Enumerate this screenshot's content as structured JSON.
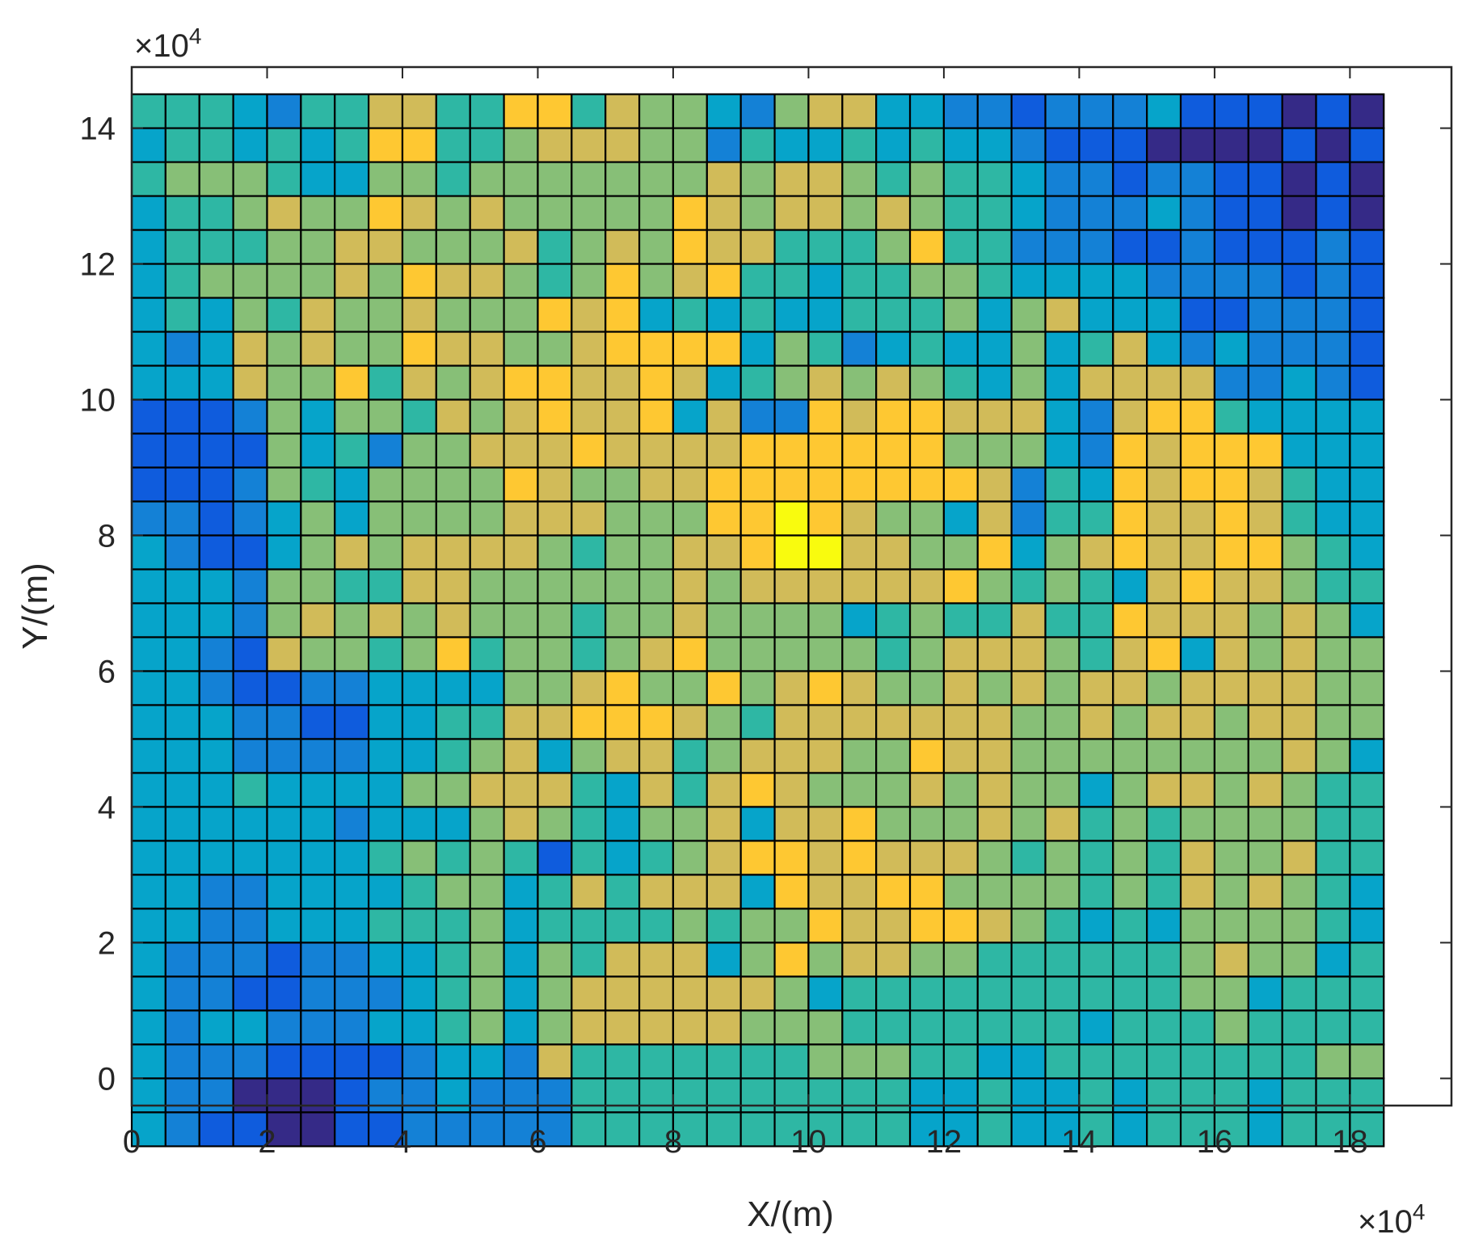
{
  "chart_data": {
    "type": "heatmap",
    "title": "",
    "xlabel": "X/(m)",
    "ylabel": "Y/(m)",
    "x_exponent": "×10",
    "x_exponent_power": "4",
    "y_exponent": "×10",
    "y_exponent_power": "4",
    "xlim": [
      0,
      19.5
    ],
    "ylim": [
      -0.4,
      14.9
    ],
    "x_ticks": [
      "0",
      "2",
      "4",
      "6",
      "8",
      "10",
      "12",
      "14",
      "16",
      "18"
    ],
    "x_tick_values": [
      0,
      2,
      4,
      6,
      8,
      10,
      12,
      14,
      16,
      18
    ],
    "y_ticks": [
      "0",
      "2",
      "4",
      "6",
      "8",
      "10",
      "12",
      "14"
    ],
    "y_tick_values": [
      0,
      2,
      4,
      6,
      8,
      10,
      12,
      14
    ],
    "cell_size": 0.5,
    "x_start": 0,
    "y_top": 14.5,
    "grid": true,
    "colormap": "parula",
    "colormap_stops": [
      "#352a87",
      "#0f5cdd",
      "#1481d6",
      "#06a4ca",
      "#2eb7a4",
      "#87bf77",
      "#d1bb59",
      "#fec832",
      "#f9fb0e"
    ],
    "values_rows_top_to_bottom": [
      "4443244664477465532566332212223111010",
      "3443434774456665524334343321110000101",
      "4555433554555555565665454432212211010",
      "3445655765655555765665654432223211010",
      "3444556655564565766444574422211211121",
      "3455556576654575674434455433332222121",
      "3435465565557673434334445356333112221",
      "3236565576655677773542343353463232221",
      "3336557465677667634565654353666622321",
      "1112535546567667362276776663267743333",
      "1111534255666766667777775553276777333",
      "1112543555576556677777777624376776433",
      "2212353555566655577876553624476676433",
      "3211356566665455667886655735676677543",
      "3332554466555555656666667545436766544",
      "3332565656555455655553454464476665653",
      "3321655457455456755555456665467365655",
      "3321122333355675575676556565665666655",
      "3332211334466777654666666655656656655",
      "3332222334563566456665576655555555653",
      "3334333355666436467655565655356656544",
      "3333332333565435563667555656454555544",
      "3333333454541434567767666545454655644",
      "3322333345534646663766775555454656543",
      "3322333444534444545576677654343555543",
      "3222122334535466635756655444444565534",
      "3221122234535666666534444444444553444",
      "3233222334535666665554444444344454444",
      "3222111123326444444455544334444444455",
      "3220001223222444444444433433434443444",
      "3211001122222444444444433433434443444"
    ]
  }
}
